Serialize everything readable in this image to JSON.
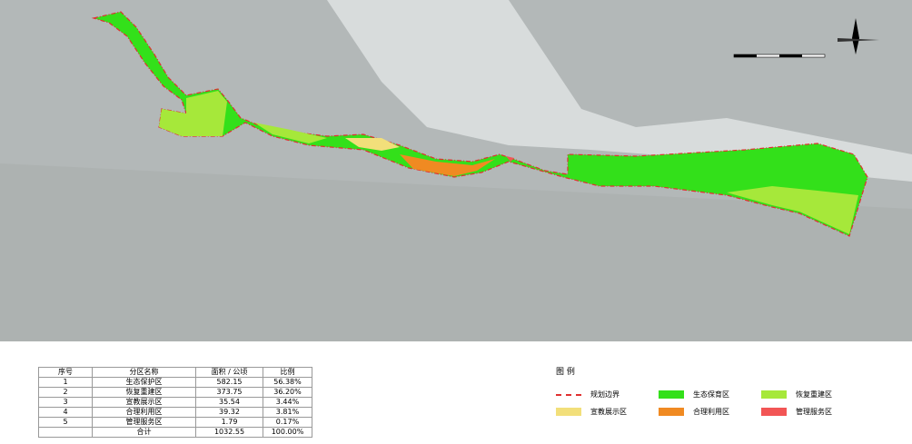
{
  "table": {
    "header": [
      "序号",
      "分区名称",
      "面积 / 公顷",
      "比例"
    ],
    "rows": [
      [
        "1",
        "生态保护区",
        "582.15",
        "56.38%"
      ],
      [
        "2",
        "恢复重建区",
        "373.75",
        "36.20%"
      ],
      [
        "3",
        "宣教展示区",
        "35.54",
        "3.44%"
      ],
      [
        "4",
        "合理利用区",
        "39.32",
        "3.81%"
      ],
      [
        "5",
        "管理服务区",
        "1.79",
        "0.17%"
      ]
    ],
    "total": {
      "label": "合计",
      "area": "1032.55",
      "ratio": "100.00%"
    }
  },
  "legend": {
    "title": "图 例",
    "items": [
      "规划边界",
      "生态保育区",
      "恢复重建区",
      "宣教展示区",
      "合理利用区",
      "管理服务区"
    ]
  }
}
